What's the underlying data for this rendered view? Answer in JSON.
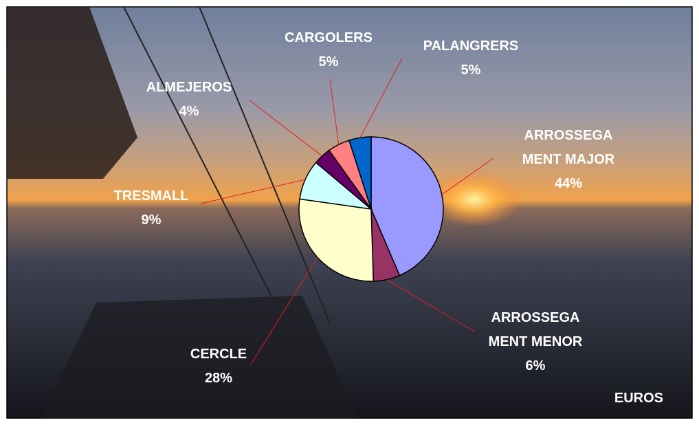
{
  "chart_data": {
    "type": "pie",
    "title": "EUROS",
    "categories": [
      "ARROSSEGA\nMENT MAJOR",
      "ARROSSEGA\nMENT MENOR",
      "CERCLE",
      "TRESMALL",
      "ALMEJEROS",
      "CARGOLERS",
      "PALANGRERS"
    ],
    "values": [
      44,
      6,
      28,
      9,
      4,
      5,
      5
    ],
    "value_labels": [
      "44%",
      "6%",
      "28%",
      "9%",
      "4%",
      "5%",
      "5%"
    ],
    "colors": [
      "#9999ff",
      "#993366",
      "#ffffcc",
      "#ccffff",
      "#660066",
      "#ff8080",
      "#0066cc"
    ]
  }
}
